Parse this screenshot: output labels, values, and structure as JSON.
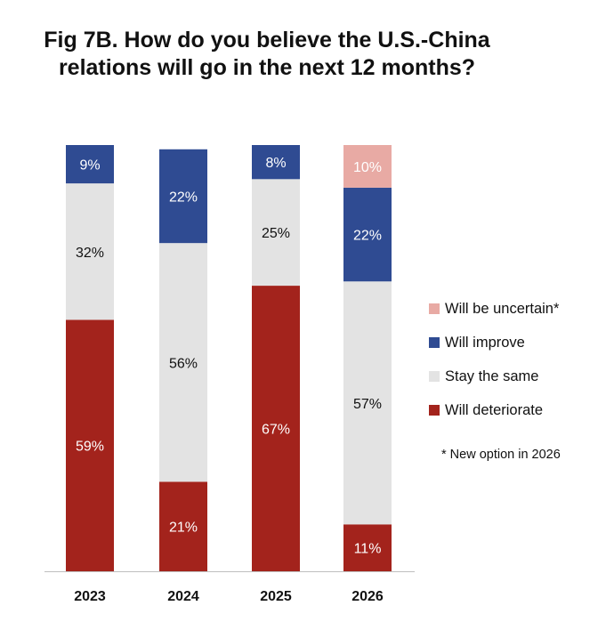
{
  "title": {
    "line1": "Fig 7B. How do you believe the U.S.-China",
    "line2": "relations will go in the next 12 months?"
  },
  "chart_data": {
    "type": "bar",
    "stacked": true,
    "title": "Fig 7B. How do you believe the U.S.-China relations will go in the next 12 months?",
    "categories": [
      "2023",
      "2024",
      "2025",
      "2026"
    ],
    "ylim": [
      0,
      100
    ],
    "series": [
      {
        "name": "Will deteriorate",
        "color": "#a3231c",
        "values": [
          59,
          21,
          67,
          11
        ],
        "labels": [
          "59%",
          "21%",
          "67%",
          "11%"
        ],
        "label_color": "#ffffff"
      },
      {
        "name": "Stay the same",
        "color": "#e3e3e3",
        "values": [
          32,
          56,
          25,
          57
        ],
        "labels": [
          "32%",
          "56%",
          "25%",
          "57%"
        ],
        "label_color": "#111111"
      },
      {
        "name": "Will improve",
        "color": "#2f4b92",
        "values": [
          9,
          22,
          8,
          22
        ],
        "labels": [
          "9%",
          "22%",
          "8%",
          "22%"
        ],
        "label_color": "#ffffff"
      },
      {
        "name": "Will be uncertain*",
        "color": "#e8aaa4",
        "values": [
          null,
          null,
          null,
          10
        ],
        "labels": [
          "",
          "",
          "",
          "10%"
        ],
        "label_color": "#ffffff"
      }
    ],
    "legend": {
      "placement": "right",
      "order": [
        "Will be uncertain*",
        "Will improve",
        "Stay the same",
        "Will deteriorate"
      ]
    },
    "grid": false,
    "footnote": "* New option in 2026"
  }
}
